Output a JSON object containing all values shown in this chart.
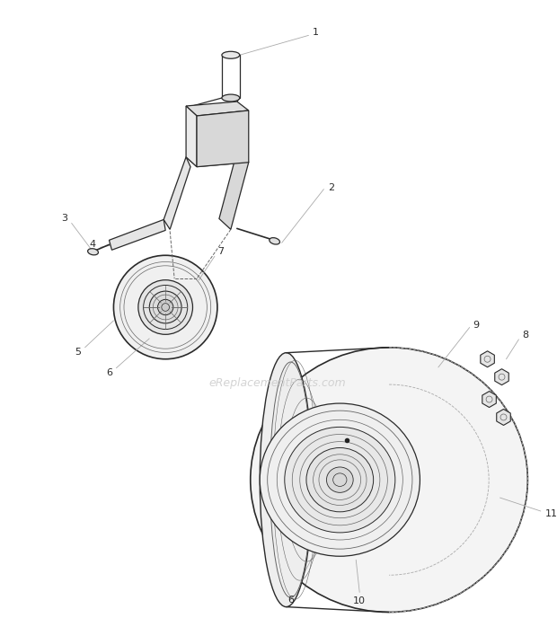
{
  "bg_color": "#ffffff",
  "line_color": "#2a2a2a",
  "mid_line_color": "#666666",
  "light_line_color": "#aaaaaa",
  "dashed_line_color": "#aaaaaa",
  "watermark": "eReplacementParts.com",
  "watermark_color": "#cccccc",
  "figsize": [
    6.2,
    6.88
  ],
  "dpi": 100
}
